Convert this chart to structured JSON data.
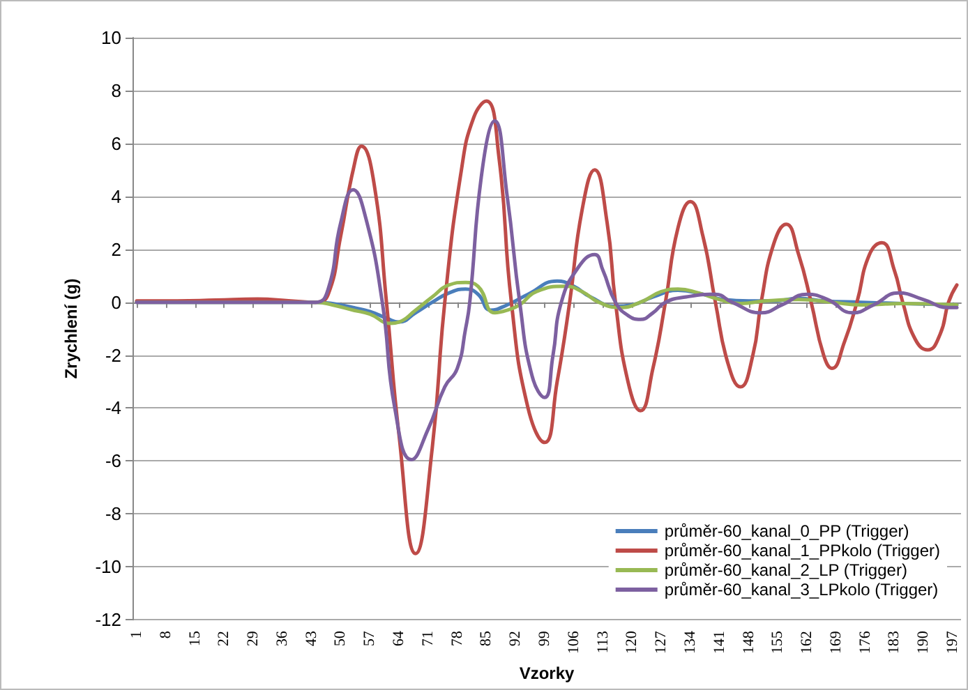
{
  "chart_data": {
    "type": "line",
    "xlabel": "Vzorky",
    "ylabel": "Zrychlení (g)",
    "xlim": [
      0,
      199
    ],
    "xticks": [
      1,
      8,
      15,
      22,
      29,
      36,
      43,
      50,
      57,
      64,
      71,
      78,
      85,
      92,
      99,
      106,
      113,
      120,
      127,
      134,
      141,
      148,
      155,
      162,
      169,
      176,
      183,
      190,
      197
    ],
    "ylim": [
      -12,
      10
    ],
    "yticks": [
      -12,
      -10,
      -8,
      -6,
      -4,
      -2,
      0,
      2,
      4,
      6,
      8,
      10
    ],
    "grid": "y",
    "legend": "bottom right",
    "marker": "none",
    "line_style": "solid",
    "series": [
      {
        "name": "průměr-60_kanal_0_PP (Trigger)",
        "color": "#4a7ebb",
        "x": [
          1,
          44,
          48,
          53,
          57,
          61,
          64,
          68,
          72,
          76,
          80,
          83,
          86,
          90,
          95,
          102,
          106,
          110,
          116,
          120,
          125,
          131,
          137,
          142,
          148,
          154,
          160,
          166,
          175,
          185,
          198
        ],
        "values": [
          0,
          0,
          -0.05,
          -0.2,
          -0.35,
          -0.6,
          -0.75,
          -0.4,
          0,
          0.35,
          0.5,
          0.3,
          -0.3,
          -0.1,
          0.3,
          0.8,
          0.6,
          0.2,
          -0.15,
          -0.1,
          0.2,
          0.45,
          0.3,
          0.1,
          0.05,
          0.05,
          0.15,
          0.05,
          0,
          -0.05,
          -0.1
        ]
      },
      {
        "name": "průměr-60_kanal_1_PPkolo (Trigger)",
        "color": "#be4b48",
        "x": [
          1,
          10,
          20,
          30,
          38,
          44,
          47,
          50,
          53,
          55,
          58,
          61,
          64,
          68,
          72,
          75,
          79,
          82,
          85,
          88,
          91,
          95,
          99,
          102,
          105,
          108,
          111,
          114,
          116,
          119,
          122,
          125,
          128,
          131,
          134,
          137,
          140,
          143,
          146,
          149,
          151,
          154,
          157,
          160,
          163,
          166,
          168,
          171,
          174,
          177,
          180,
          183,
          185,
          188,
          191,
          194,
          196,
          198
        ],
        "values": [
          0.05,
          0.05,
          0.08,
          0.12,
          0.05,
          0,
          0.3,
          2.5,
          5,
          5.9,
          4.5,
          0,
          -5,
          -9.5,
          -5.5,
          0,
          5,
          7,
          7.6,
          5.5,
          0,
          -4,
          -5.3,
          -3,
          0,
          3.5,
          5,
          3,
          0,
          -3,
          -4.1,
          -2.5,
          0,
          2.8,
          3.8,
          2.5,
          0,
          -2.3,
          -3.2,
          -2,
          0,
          2.2,
          2.95,
          1.8,
          0,
          -2,
          -2.5,
          -1.5,
          0,
          1.8,
          2.25,
          1.2,
          0,
          -1.4,
          -1.8,
          -1.2,
          0,
          0.65
        ]
      },
      {
        "name": "průměr-60_kanal_2_LP (Trigger)",
        "color": "#98b954",
        "x": [
          1,
          44,
          48,
          53,
          57,
          62,
          64,
          68,
          72,
          76,
          80,
          83,
          87,
          90,
          93,
          97,
          104,
          108,
          112,
          117,
          122,
          127,
          131,
          136,
          141,
          146,
          152,
          160,
          168,
          175,
          185,
          198
        ],
        "values": [
          0,
          0,
          -0.1,
          -0.3,
          -0.45,
          -0.8,
          -0.75,
          -0.3,
          0.2,
          0.65,
          0.75,
          0.6,
          -0.4,
          -0.3,
          -0.1,
          0.4,
          0.6,
          0.4,
          0,
          -0.2,
          0,
          0.4,
          0.5,
          0.35,
          0.1,
          -0.05,
          0.05,
          0.1,
          0,
          -0.1,
          -0.05,
          -0.1
        ]
      },
      {
        "name": "průměr-60_kanal_3_LPkolo (Trigger)",
        "color": "#7d60a0",
        "x": [
          1,
          20,
          44,
          47,
          50,
          53,
          56,
          60,
          63,
          67,
          71,
          75,
          78,
          80,
          81,
          84,
          87,
          90,
          93,
          96,
          99,
          101,
          103,
          107,
          111,
          113,
          116,
          119,
          122,
          125,
          128,
          133,
          140,
          144,
          151,
          156,
          162,
          167,
          173,
          178,
          184,
          190,
          196,
          198
        ],
        "values": [
          0,
          0,
          0,
          0.5,
          3,
          4.25,
          3.2,
          0,
          -4,
          -5.95,
          -4.8,
          -3.2,
          -2.5,
          -1,
          0,
          5,
          6.85,
          4,
          0,
          -2.8,
          -3.6,
          -2,
          0,
          1.3,
          1.8,
          1.2,
          0,
          -0.5,
          -0.65,
          -0.4,
          0,
          0.2,
          0.3,
          0,
          -0.4,
          -0.1,
          0.3,
          0.1,
          -0.4,
          -0.1,
          0.35,
          0.1,
          -0.2,
          -0.2
        ]
      }
    ]
  }
}
